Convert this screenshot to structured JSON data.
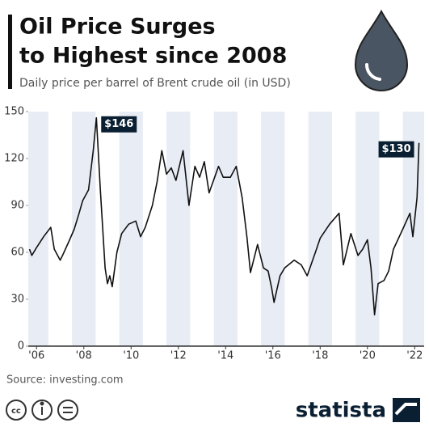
{
  "chart_data": {
    "type": "line",
    "title_lines": [
      "Oil Price Surges",
      "to Highest since 2008"
    ],
    "subtitle": "Daily price per barrel of Brent crude oil (in USD)",
    "source": "Source: investing.com",
    "brand": "statista",
    "color": "#111111",
    "grid": false,
    "xlim": [
      2005.65,
      2022.4
    ],
    "ylim": [
      0,
      150
    ],
    "yticks": [
      0,
      30,
      60,
      90,
      120,
      150
    ],
    "xticks": [
      {
        "value": 2006,
        "label": "'06"
      },
      {
        "value": 2008,
        "label": "'08"
      },
      {
        "value": 2010,
        "label": "'10"
      },
      {
        "value": 2012,
        "label": "'12"
      },
      {
        "value": 2014,
        "label": "'14"
      },
      {
        "value": 2016,
        "label": "'16"
      },
      {
        "value": 2018,
        "label": "'18"
      },
      {
        "value": 2020,
        "label": "'20"
      },
      {
        "value": 2022,
        "label": "'22"
      }
    ],
    "x": [
      2005.7,
      2005.8,
      2006.0,
      2006.3,
      2006.6,
      2006.75,
      2007.0,
      2007.1,
      2007.4,
      2007.6,
      2007.8,
      2007.95,
      2008.2,
      2008.4,
      2008.53,
      2008.7,
      2008.9,
      2009.0,
      2009.1,
      2009.2,
      2009.4,
      2009.6,
      2009.9,
      2010.2,
      2010.4,
      2010.6,
      2010.9,
      2011.1,
      2011.3,
      2011.5,
      2011.7,
      2011.9,
      2012.2,
      2012.45,
      2012.7,
      2012.9,
      2013.1,
      2013.3,
      2013.7,
      2013.9,
      2014.2,
      2014.45,
      2014.7,
      2014.9,
      2015.05,
      2015.35,
      2015.6,
      2015.8,
      2015.95,
      2016.05,
      2016.3,
      2016.5,
      2016.9,
      2017.2,
      2017.45,
      2017.8,
      2018.0,
      2018.4,
      2018.8,
      2018.98,
      2019.3,
      2019.6,
      2019.8,
      2020.0,
      2020.15,
      2020.3,
      2020.45,
      2020.7,
      2020.9,
      2021.1,
      2021.5,
      2021.8,
      2021.92,
      2022.1,
      2022.18
    ],
    "series": [
      {
        "name": "Brent crude oil",
        "color": "#111111",
        "values": [
          62,
          58,
          63,
          70,
          76,
          62,
          55,
          58,
          68,
          75,
          85,
          93,
          100,
          125,
          146,
          100,
          50,
          40,
          45,
          38,
          60,
          72,
          78,
          80,
          70,
          76,
          90,
          105,
          125,
          110,
          114,
          106,
          125,
          90,
          115,
          108,
          118,
          98,
          115,
          108,
          108,
          115,
          95,
          70,
          47,
          65,
          50,
          48,
          37,
          28,
          45,
          50,
          55,
          52,
          45,
          60,
          69,
          78,
          85,
          52,
          72,
          58,
          62,
          68,
          50,
          20,
          40,
          42,
          48,
          62,
          75,
          85,
          70,
          95,
          130
        ]
      }
    ],
    "annotations": [
      {
        "x": 2008.53,
        "y": 146,
        "label": "$146"
      },
      {
        "x": 2022.18,
        "y": 130,
        "label": "$130"
      }
    ]
  }
}
